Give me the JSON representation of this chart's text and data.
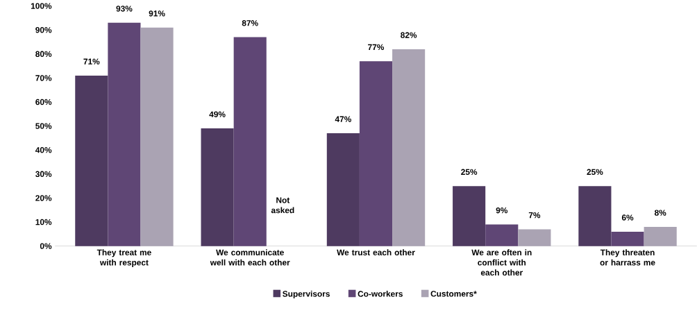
{
  "chart_data": {
    "type": "bar",
    "categories": [
      "They treat me with respect",
      "We communicate well with each other",
      "We trust each other",
      "We are often in conflict with each other",
      "They threaten or harrass me"
    ],
    "series": [
      {
        "name": "Supervisors",
        "color": "#4e3a60",
        "values": [
          71,
          49,
          47,
          25,
          25
        ],
        "value_labels": [
          "71%",
          "49%",
          "47%",
          "25%",
          "25%"
        ]
      },
      {
        "name": "Co-workers",
        "color": "#5f4675",
        "values": [
          93,
          87,
          77,
          9,
          6
        ],
        "value_labels": [
          "93%",
          "87%",
          "77%",
          "9%",
          "6%"
        ]
      },
      {
        "name": "Customers*",
        "color": "#aaa3b3",
        "values": [
          91,
          null,
          82,
          7,
          8
        ],
        "value_labels": [
          "91%",
          null,
          "82%",
          "7%",
          "8%"
        ]
      }
    ],
    "annotations": [
      "Not asked"
    ],
    "ylim": [
      0,
      100
    ],
    "yticks": [
      {
        "value": 0,
        "label": "0%"
      },
      {
        "value": 10,
        "label": "10%"
      },
      {
        "value": 20,
        "label": "20%"
      },
      {
        "value": 30,
        "label": "30%"
      },
      {
        "value": 40,
        "label": "40%"
      },
      {
        "value": 50,
        "label": "50%"
      },
      {
        "value": 60,
        "label": "60%"
      },
      {
        "value": 70,
        "label": "70%"
      },
      {
        "value": 80,
        "label": "80%"
      },
      {
        "value": 90,
        "label": "90%"
      },
      {
        "value": 100,
        "label": "100%"
      }
    ],
    "legend": "bottom",
    "grid": false
  }
}
